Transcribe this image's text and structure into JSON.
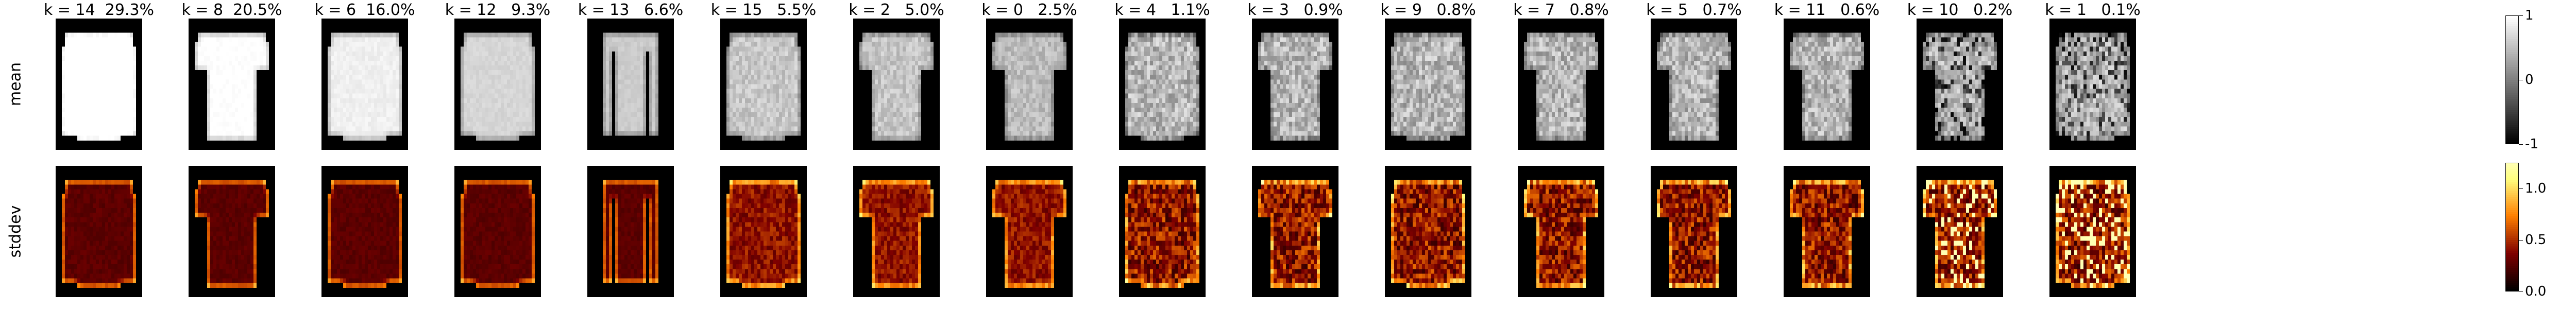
{
  "chart_data": {
    "type": "heatmap",
    "rows": [
      "mean",
      "stddev"
    ],
    "panels": [
      {
        "k": 14,
        "title": "k = 14  29.3%",
        "share_pct": 29.3,
        "garment": "pullover"
      },
      {
        "k": 8,
        "title": "k = 8  20.5%",
        "share_pct": 20.5,
        "garment": "tshirt"
      },
      {
        "k": 6,
        "title": "k = 6  16.0%",
        "share_pct": 16.0,
        "garment": "pullover"
      },
      {
        "k": 12,
        "title": "k = 12   9.3%",
        "share_pct": 9.3,
        "garment": "pullover"
      },
      {
        "k": 13,
        "title": "k = 13   6.6%",
        "share_pct": 6.6,
        "garment": "narrow"
      },
      {
        "k": 15,
        "title": "k = 15   5.5%",
        "share_pct": 5.5,
        "garment": "pullover"
      },
      {
        "k": 2,
        "title": "k = 2   5.0%",
        "share_pct": 5.0,
        "garment": "tshirt"
      },
      {
        "k": 0,
        "title": "k = 0   2.5%",
        "share_pct": 2.5,
        "garment": "tshirt"
      },
      {
        "k": 4,
        "title": "k = 4   1.1%",
        "share_pct": 1.1,
        "garment": "pullover"
      },
      {
        "k": 3,
        "title": "k = 3   0.9%",
        "share_pct": 0.9,
        "garment": "tshirt"
      },
      {
        "k": 9,
        "title": "k = 9   0.8%",
        "share_pct": 0.8,
        "garment": "pullover"
      },
      {
        "k": 7,
        "title": "k = 7   0.8%",
        "share_pct": 0.8,
        "garment": "tshirt"
      },
      {
        "k": 5,
        "title": "k = 5   0.7%",
        "share_pct": 0.7,
        "garment": "tshirt"
      },
      {
        "k": 11,
        "title": "k = 11   0.6%",
        "share_pct": 0.6,
        "garment": "tshirt"
      },
      {
        "k": 10,
        "title": "k = 10   0.2%",
        "share_pct": 0.2,
        "garment": "tshirt"
      },
      {
        "k": 1,
        "title": "k = 1   0.1%",
        "share_pct": 0.1,
        "garment": "pullover"
      }
    ],
    "colorbars": [
      {
        "row": "mean",
        "colormap": "gray",
        "range": [
          -1,
          1
        ],
        "ticks": [
          1,
          0,
          -1
        ]
      },
      {
        "row": "stddev",
        "colormap": "afmhot",
        "range": [
          0,
          1.25
        ],
        "ticks": [
          1.0,
          0.5,
          0.0
        ]
      }
    ]
  }
}
